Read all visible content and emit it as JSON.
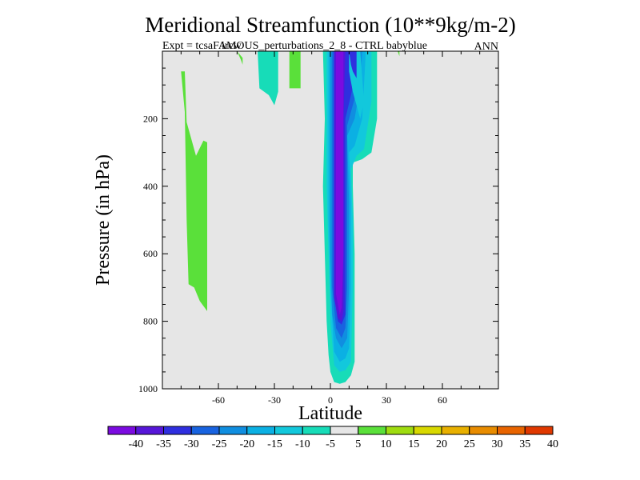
{
  "chart_data": {
    "type": "heatmap",
    "title": "Meridional Streamfunction (10**9kg/m-2)",
    "subtitle": "Expt = tcsaFAMOUS_perturbations_2_8 - CTRL babyblue",
    "subtitle_overlap": "ircw",
    "season": "ANN",
    "xlabel": "Latitude",
    "ylabel": "Pressure (in hPa)",
    "xlim": [
      -90,
      90
    ],
    "ylim": [
      0,
      1000
    ],
    "y_inverted": true,
    "xticks": [
      -60,
      -30,
      0,
      30,
      60
    ],
    "xtick_labels": [
      "-60",
      "-30",
      "0",
      "30",
      "60"
    ],
    "yticks": [
      200,
      400,
      600,
      800,
      1000
    ],
    "ytick_labels": [
      "200",
      "400",
      "600",
      "800",
      "1000"
    ],
    "background_color": "#e6e6e6",
    "colorbar": {
      "labels": [
        "-40",
        "-35",
        "-30",
        "-25",
        "-20",
        "-15",
        "-10",
        "-5",
        "5",
        "10",
        "15",
        "20",
        "25",
        "30",
        "35",
        "40"
      ],
      "colors": [
        "#7b0be0",
        "#5616d8",
        "#2f2fdf",
        "#1863e0",
        "#108ee0",
        "#0bb0e3",
        "#12c8dc",
        "#17dcb8",
        "#e6e6e6",
        "#5ae03a",
        "#9fdc10",
        "#d8d800",
        "#e8b000",
        "#e88c00",
        "#e86400",
        "#e03800"
      ]
    },
    "regions": [
      {
        "name": "polar-south-positive",
        "color": "#5ae03a",
        "points": [
          [
            -80,
            60
          ],
          [
            -78,
            180
          ],
          [
            -77,
            500
          ],
          [
            -76,
            690
          ],
          [
            -73,
            700
          ],
          [
            -70,
            740
          ],
          [
            -66,
            770
          ],
          [
            -66,
            270
          ],
          [
            -68,
            265
          ],
          [
            -72,
            310
          ],
          [
            -77,
            210
          ],
          [
            -78,
            60
          ]
        ]
      },
      {
        "name": "upper-positive-1",
        "color": "#5ae03a",
        "points": [
          [
            -50,
            0
          ],
          [
            -47,
            20
          ],
          [
            -47,
            40
          ],
          [
            -48,
            25
          ]
        ]
      },
      {
        "name": "upper-negative-1",
        "color": "#17dcb8",
        "points": [
          [
            -39,
            0
          ],
          [
            -38,
            110
          ],
          [
            -33,
            130
          ],
          [
            -30,
            160
          ],
          [
            -28,
            120
          ],
          [
            -28,
            0
          ]
        ]
      },
      {
        "name": "upper-positive-2",
        "color": "#5ae03a",
        "points": [
          [
            -22,
            0
          ],
          [
            -22,
            110
          ],
          [
            -16,
            110
          ],
          [
            -16,
            0
          ]
        ]
      },
      {
        "name": "hadley-cell-minus5",
        "color": "#17dcb8",
        "points": [
          [
            -4,
            0
          ],
          [
            -3,
            200
          ],
          [
            -4,
            400
          ],
          [
            -3,
            600
          ],
          [
            -2,
            800
          ],
          [
            -1,
            900
          ],
          [
            0,
            950
          ],
          [
            2,
            980
          ],
          [
            5,
            985
          ],
          [
            8,
            980
          ],
          [
            11,
            960
          ],
          [
            13,
            920
          ],
          [
            13,
            600
          ],
          [
            12,
            400
          ],
          [
            12,
            330
          ],
          [
            17,
            320
          ],
          [
            22,
            300
          ],
          [
            25,
            200
          ],
          [
            25,
            0
          ]
        ]
      },
      {
        "name": "hadley-cell-minus10",
        "color": "#12c8dc",
        "points": [
          [
            -2,
            0
          ],
          [
            -2,
            400
          ],
          [
            -1,
            600
          ],
          [
            0,
            800
          ],
          [
            2,
            930
          ],
          [
            5,
            950
          ],
          [
            8,
            945
          ],
          [
            11,
            920
          ],
          [
            12,
            700
          ],
          [
            12,
            500
          ],
          [
            11,
            350
          ],
          [
            14,
            310
          ],
          [
            18,
            290
          ],
          [
            22,
            150
          ],
          [
            22,
            0
          ]
        ]
      },
      {
        "name": "hadley-cell-minus15",
        "color": "#0bb0e3",
        "points": [
          [
            -1,
            0
          ],
          [
            -1,
            500
          ],
          [
            0,
            700
          ],
          [
            2,
            890
          ],
          [
            5,
            920
          ],
          [
            8,
            910
          ],
          [
            10,
            880
          ],
          [
            11,
            700
          ],
          [
            11,
            450
          ],
          [
            10,
            300
          ],
          [
            13,
            280
          ],
          [
            17,
            200
          ],
          [
            19,
            0
          ]
        ]
      },
      {
        "name": "hadley-cell-minus20",
        "color": "#108ee0",
        "points": [
          [
            0,
            0
          ],
          [
            0,
            600
          ],
          [
            1,
            780
          ],
          [
            3,
            850
          ],
          [
            6,
            880
          ],
          [
            9,
            850
          ],
          [
            10,
            700
          ],
          [
            10,
            450
          ],
          [
            9,
            250
          ],
          [
            13,
            200
          ],
          [
            16,
            100
          ],
          [
            17,
            0
          ]
        ]
      },
      {
        "name": "hadley-cell-minus25",
        "color": "#1863e0",
        "points": [
          [
            1,
            0
          ],
          [
            1,
            700
          ],
          [
            3,
            820
          ],
          [
            6,
            850
          ],
          [
            8,
            820
          ],
          [
            9,
            700
          ],
          [
            9,
            400
          ],
          [
            9,
            220
          ],
          [
            12,
            160
          ],
          [
            15,
            100
          ],
          [
            15,
            0
          ]
        ]
      },
      {
        "name": "hadley-cell-minus30",
        "color": "#2f2fdf",
        "points": [
          [
            2,
            0
          ],
          [
            2,
            720
          ],
          [
            4,
            800
          ],
          [
            6,
            810
          ],
          [
            8,
            780
          ],
          [
            8,
            500
          ],
          [
            8,
            200
          ],
          [
            11,
            130
          ],
          [
            13,
            80
          ],
          [
            14,
            0
          ]
        ]
      },
      {
        "name": "hadley-cell-minus35",
        "color": "#5616d8",
        "points": [
          [
            2,
            0
          ],
          [
            2,
            730
          ],
          [
            4,
            790
          ],
          [
            6,
            800
          ],
          [
            7,
            770
          ],
          [
            7,
            200
          ],
          [
            8,
            0
          ]
        ]
      },
      {
        "name": "hadley-cell-core",
        "color": "#7b0be0",
        "points": [
          [
            3,
            0
          ],
          [
            3,
            720
          ],
          [
            5,
            780
          ],
          [
            6,
            760
          ],
          [
            7,
            600
          ],
          [
            7,
            0
          ]
        ]
      },
      {
        "name": "upper-minus10-streak",
        "color": "#12c8dc",
        "points": [
          [
            10,
            0
          ],
          [
            10,
            60
          ],
          [
            12,
            120
          ],
          [
            16,
            200
          ],
          [
            18,
            150
          ],
          [
            16,
            0
          ]
        ]
      },
      {
        "name": "upper-minus35-streak",
        "color": "#2f2fdf",
        "points": [
          [
            10,
            0
          ],
          [
            11,
            40
          ],
          [
            12,
            60
          ],
          [
            14,
            80
          ],
          [
            14,
            0
          ]
        ]
      },
      {
        "name": "tiny-positive-north",
        "color": "#5ae03a",
        "points": [
          [
            36,
            0
          ],
          [
            37,
            15
          ],
          [
            37,
            0
          ]
        ]
      }
    ]
  }
}
